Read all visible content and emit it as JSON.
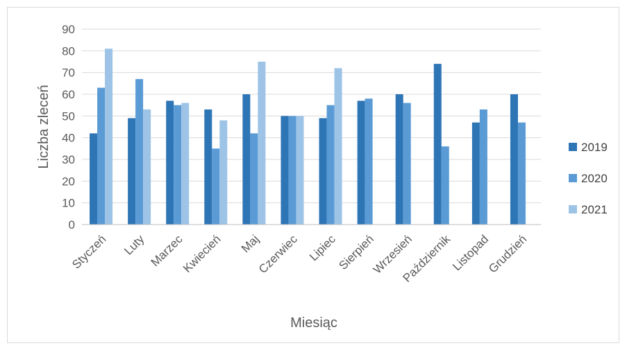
{
  "chart_data": {
    "type": "bar",
    "title": "",
    "xlabel": "Miesiąc",
    "ylabel": "Liczba zleceń",
    "ylim": [
      0,
      90
    ],
    "yticks": [
      0,
      10,
      20,
      30,
      40,
      50,
      60,
      70,
      80,
      90
    ],
    "grid": true,
    "legend_position": "right",
    "categories": [
      "Styczeń",
      "Luty",
      "Marzec",
      "Kwiecień",
      "Maj",
      "Czerwiec",
      "Lipiec",
      "Sierpień",
      "Wrzesień",
      "Październik",
      "Listopad",
      "Grudzień"
    ],
    "series": [
      {
        "name": "2019",
        "color": "#2e75b6",
        "values": [
          42,
          49,
          57,
          53,
          60,
          50,
          49,
          57,
          60,
          74,
          47,
          60
        ]
      },
      {
        "name": "2020",
        "color": "#5b9bd5",
        "values": [
          63,
          67,
          55,
          35,
          42,
          50,
          55,
          58,
          56,
          36,
          53,
          47
        ]
      },
      {
        "name": "2021",
        "color": "#9dc3e6",
        "values": [
          81,
          53,
          56,
          48,
          75,
          50,
          72,
          null,
          null,
          null,
          null,
          null
        ]
      }
    ]
  }
}
